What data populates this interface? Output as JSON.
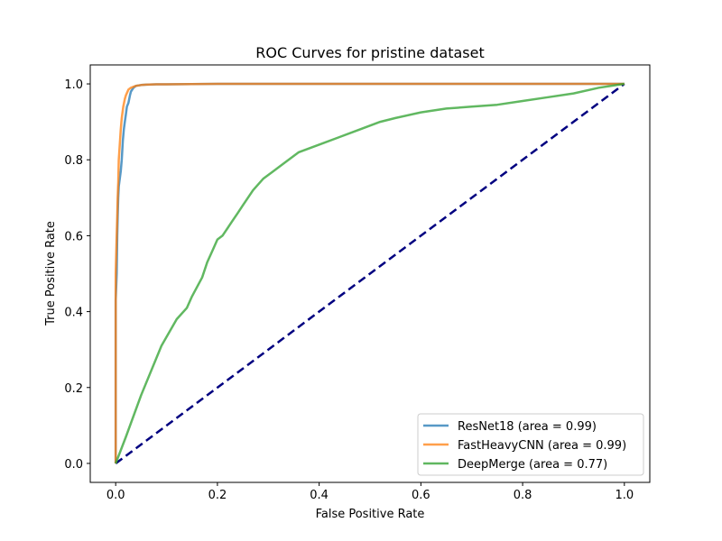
{
  "chart_data": {
    "type": "line",
    "title": "ROC Curves for pristine dataset",
    "xlabel": "False Positive Rate",
    "ylabel": "True Positive Rate",
    "xlim": [
      -0.05,
      1.05
    ],
    "ylim": [
      -0.05,
      1.05
    ],
    "xticks": [
      0.0,
      0.2,
      0.4,
      0.6,
      0.8,
      1.0
    ],
    "yticks": [
      0.0,
      0.2,
      0.4,
      0.6,
      0.8,
      1.0
    ],
    "xtick_labels": [
      "0.0",
      "0.2",
      "0.4",
      "0.6",
      "0.8",
      "1.0"
    ],
    "ytick_labels": [
      "0.0",
      "0.2",
      "0.4",
      "0.6",
      "0.8",
      "1.0"
    ],
    "grid": false,
    "legend_position": "lower-right",
    "series": [
      {
        "name": "ResNet18 (area = 0.99)",
        "color": "#1f77b4",
        "x": [
          0.0,
          0.0,
          0.002,
          0.003,
          0.004,
          0.005,
          0.006,
          0.008,
          0.01,
          0.012,
          0.014,
          0.016,
          0.018,
          0.02,
          0.022,
          0.025,
          0.028,
          0.03,
          0.035,
          0.04,
          0.05,
          0.06,
          0.08,
          0.1,
          0.2,
          0.4,
          0.6,
          0.8,
          1.0
        ],
        "y": [
          0.0,
          0.43,
          0.5,
          0.6,
          0.65,
          0.7,
          0.73,
          0.75,
          0.77,
          0.8,
          0.85,
          0.88,
          0.9,
          0.92,
          0.94,
          0.95,
          0.97,
          0.98,
          0.99,
          0.995,
          0.997,
          0.998,
          0.999,
          0.999,
          1.0,
          1.0,
          1.0,
          1.0,
          1.0
        ]
      },
      {
        "name": "FastHeavyCNN (area = 0.99)",
        "color": "#ff7f0e",
        "x": [
          0.0,
          0.0,
          0.002,
          0.003,
          0.004,
          0.005,
          0.006,
          0.008,
          0.01,
          0.012,
          0.015,
          0.018,
          0.02,
          0.025,
          0.03,
          0.04,
          0.05,
          0.06,
          0.08,
          0.1,
          0.2,
          0.4,
          0.6,
          0.8,
          1.0
        ],
        "y": [
          0.0,
          0.5,
          0.6,
          0.65,
          0.7,
          0.74,
          0.8,
          0.84,
          0.88,
          0.91,
          0.94,
          0.96,
          0.97,
          0.985,
          0.99,
          0.995,
          0.997,
          0.998,
          0.999,
          0.999,
          1.0,
          1.0,
          1.0,
          1.0,
          1.0
        ]
      },
      {
        "name": "DeepMerge (area = 0.77)",
        "color": "#2ca02c",
        "x": [
          0.0,
          0.02,
          0.05,
          0.09,
          0.12,
          0.14,
          0.15,
          0.17,
          0.18,
          0.19,
          0.2,
          0.21,
          0.22,
          0.23,
          0.24,
          0.25,
          0.27,
          0.29,
          0.31,
          0.33,
          0.36,
          0.4,
          0.44,
          0.48,
          0.52,
          0.55,
          0.6,
          0.65,
          0.7,
          0.75,
          0.8,
          0.85,
          0.9,
          0.95,
          1.0
        ],
        "y": [
          0.0,
          0.07,
          0.18,
          0.31,
          0.38,
          0.41,
          0.44,
          0.49,
          0.53,
          0.56,
          0.59,
          0.6,
          0.62,
          0.64,
          0.66,
          0.68,
          0.72,
          0.75,
          0.77,
          0.79,
          0.82,
          0.84,
          0.86,
          0.88,
          0.9,
          0.91,
          0.925,
          0.935,
          0.94,
          0.945,
          0.955,
          0.965,
          0.975,
          0.99,
          1.0
        ]
      },
      {
        "name": "",
        "color": "#000080",
        "dashed": true,
        "x": [
          0.0,
          1.0
        ],
        "y": [
          0.0,
          1.0
        ]
      }
    ]
  }
}
